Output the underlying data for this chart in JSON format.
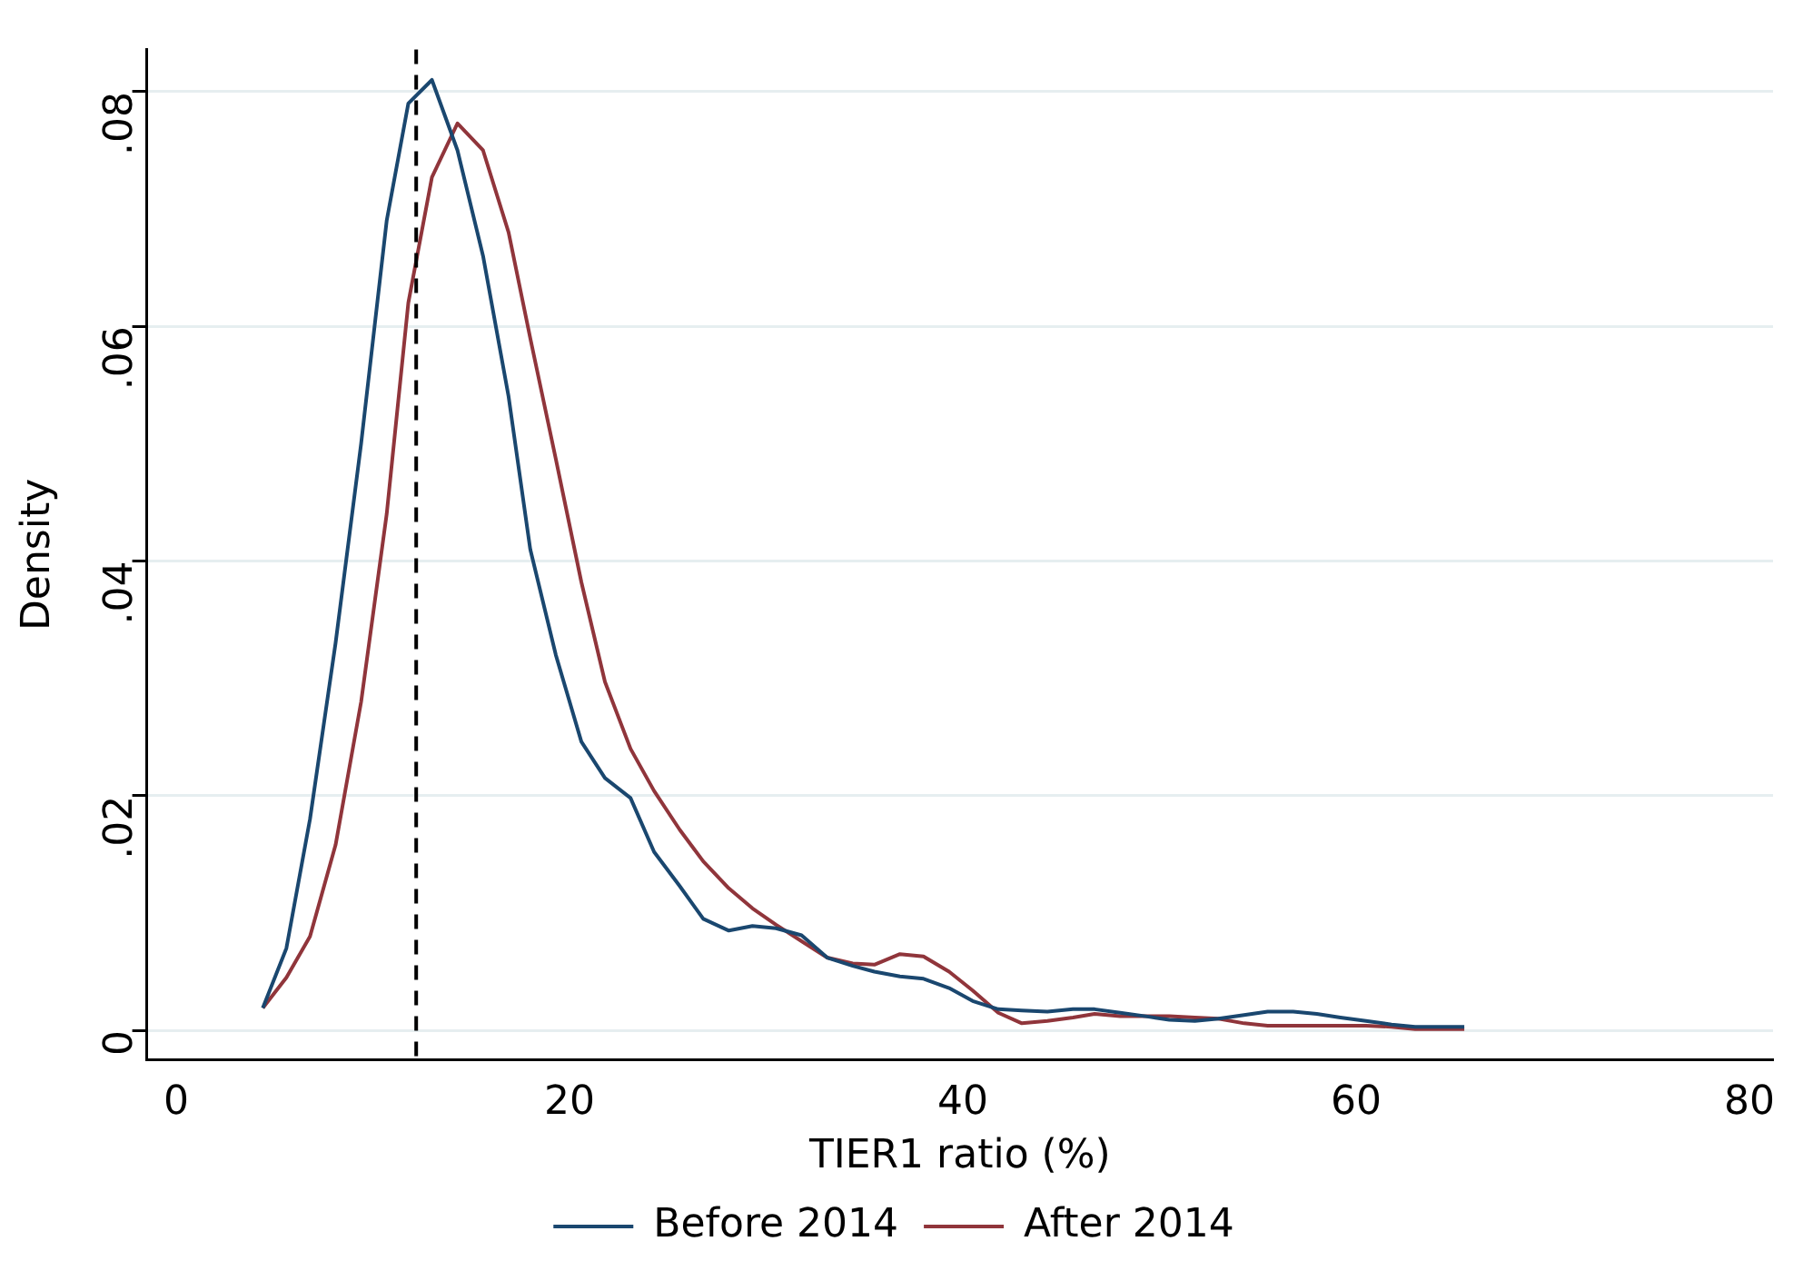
{
  "chart_data": {
    "type": "line",
    "xlabel": "TIER1 ratio (%)",
    "ylabel": "Density",
    "x": [
      4.4,
      5.6,
      6.8,
      8.1,
      9.4,
      10.7,
      11.8,
      13.0,
      14.3,
      15.6,
      16.9,
      18.0,
      19.3,
      20.6,
      21.8,
      23.1,
      24.3,
      25.6,
      26.8,
      28.1,
      29.3,
      30.5,
      31.8,
      33.1,
      34.4,
      35.5,
      36.8,
      38.0,
      39.3,
      40.5,
      41.8,
      43.0,
      44.3,
      45.6,
      46.7,
      48.0,
      49.3,
      50.5,
      51.8,
      53.0,
      54.3,
      55.5,
      56.8,
      58.0,
      59.2,
      60.5,
      61.8,
      63.0,
      64.2,
      65.5
    ],
    "series": [
      {
        "name": "Before 2014",
        "color": "#1a476f",
        "values": [
          0.0019,
          0.007,
          0.018,
          0.033,
          0.05,
          0.069,
          0.079,
          0.081,
          0.075,
          0.066,
          0.054,
          0.041,
          0.032,
          0.0246,
          0.0215,
          0.0198,
          0.0152,
          0.0123,
          0.0095,
          0.0085,
          0.0089,
          0.0087,
          0.0081,
          0.0062,
          0.0055,
          0.005,
          0.0046,
          0.0044,
          0.0036,
          0.0025,
          0.0018,
          0.0017,
          0.0016,
          0.0018,
          0.0018,
          0.0015,
          0.0012,
          0.0009,
          0.0008,
          0.001,
          0.0013,
          0.0016,
          0.0016,
          0.0014,
          0.0011,
          0.0008,
          0.0005,
          0.0003,
          0.0003,
          0.0003
        ]
      },
      {
        "name": "After 2014",
        "color": "#90353b",
        "values": [
          0.0019,
          0.0045,
          0.008,
          0.0158,
          0.028,
          0.044,
          0.062,
          0.0727,
          0.0773,
          0.075,
          0.068,
          0.059,
          0.0487,
          0.0382,
          0.0297,
          0.024,
          0.0204,
          0.0171,
          0.0144,
          0.0121,
          0.0104,
          0.009,
          0.0076,
          0.0062,
          0.0057,
          0.0056,
          0.0065,
          0.0063,
          0.005,
          0.0034,
          0.0015,
          0.0006,
          0.0008,
          0.0011,
          0.0014,
          0.0012,
          0.0012,
          0.0012,
          0.0011,
          0.001,
          0.0006,
          0.0004,
          0.0004,
          0.0004,
          0.0004,
          0.0004,
          0.0003,
          0.0001,
          0.0001,
          0.0001
        ]
      }
    ],
    "xlim": [
      -1.5,
      81.2
    ],
    "xticks": [
      0,
      20,
      40,
      60,
      80
    ],
    "ylim": [
      -0.0025,
      0.0836
    ],
    "yticks": [
      {
        "value": 0,
        "label": "0"
      },
      {
        "value": 0.02,
        "label": ".02"
      },
      {
        "value": 0.04,
        "label": ".04"
      },
      {
        "value": 0.06,
        "label": ".06"
      },
      {
        "value": 0.08,
        "label": ".08"
      }
    ],
    "ref_lines": [
      {
        "axis": "x",
        "value": 12.2,
        "color": "#000000",
        "line_style": "dashed"
      }
    ],
    "grid": "y",
    "legend": "bottom",
    "marker": "none",
    "line_style": "solid"
  }
}
